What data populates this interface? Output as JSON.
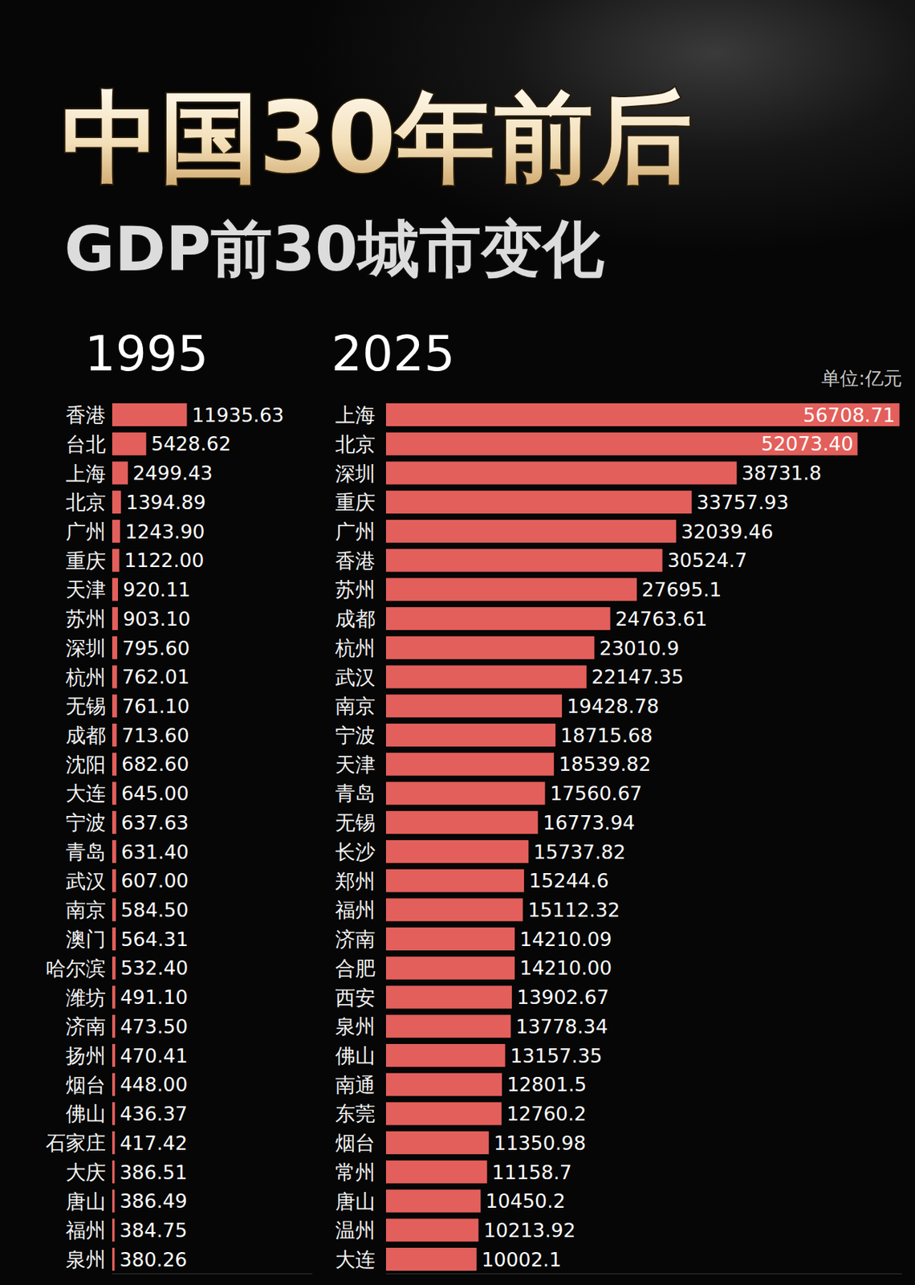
{
  "header": {
    "title": "中国30年前后",
    "subtitle": "GDP前30城市变化",
    "unit": "单位:亿元"
  },
  "chart_data": [
    {
      "type": "bar",
      "title": "1995",
      "orientation": "horizontal",
      "data_labels": true,
      "tick_labels": false,
      "color": "#e35f5b",
      "categories": [
        "香港",
        "台北",
        "上海",
        "北京",
        "广州",
        "重庆",
        "天津",
        "苏州",
        "深圳",
        "杭州",
        "无锡",
        "成都",
        "沈阳",
        "大连",
        "宁波",
        "青岛",
        "武汉",
        "南京",
        "澳门",
        "哈尔滨",
        "潍坊",
        "济南",
        "扬州",
        "烟台",
        "佛山",
        "石家庄",
        "大庆",
        "唐山",
        "福州",
        "泉州"
      ],
      "values": [
        11935.63,
        5428.62,
        2499.43,
        1394.89,
        1243.9,
        1122.0,
        920.11,
        903.1,
        795.6,
        762.01,
        761.1,
        713.6,
        682.6,
        645.0,
        637.63,
        631.4,
        607.0,
        584.5,
        564.31,
        532.4,
        491.1,
        473.5,
        470.41,
        448.0,
        436.37,
        417.42,
        386.51,
        386.49,
        384.75,
        380.26
      ],
      "value_labels": [
        "11935.63",
        "5428.62",
        "2499.43",
        "1394.89",
        "1243.90",
        "1122.00",
        "920.11",
        "903.10",
        "795.60",
        "762.01",
        "761.10",
        "713.60",
        "682.60",
        "645.00",
        "637.63",
        "631.40",
        "607.00",
        "584.50",
        "564.31",
        "532.40",
        "491.10",
        "473.50",
        "470.41",
        "448.00",
        "436.37",
        "417.42",
        "386.51",
        "386.49",
        "384.75",
        "380.26"
      ],
      "xlim": [
        0,
        32000
      ]
    },
    {
      "type": "bar",
      "title": "2025",
      "orientation": "horizontal",
      "data_labels": true,
      "tick_labels": false,
      "color": "#e35f5b",
      "categories": [
        "上海",
        "北京",
        "深圳",
        "重庆",
        "广州",
        "香港",
        "苏州",
        "成都",
        "杭州",
        "武汉",
        "南京",
        "宁波",
        "天津",
        "青岛",
        "无锡",
        "长沙",
        "郑州",
        "福州",
        "济南",
        "合肥",
        "西安",
        "泉州",
        "佛山",
        "南通",
        "东莞",
        "烟台",
        "常州",
        "唐山",
        "温州",
        "大连"
      ],
      "values": [
        56708.71,
        52073.4,
        38731.8,
        33757.93,
        32039.46,
        30524.7,
        27695.1,
        24763.61,
        23010.9,
        22147.35,
        19428.78,
        18715.68,
        18539.82,
        17560.67,
        16773.94,
        15737.82,
        15244.6,
        15112.32,
        14210.09,
        14210.0,
        13902.67,
        13778.34,
        13157.35,
        12801.5,
        12760.2,
        11350.98,
        11158.7,
        10450.2,
        10213.92,
        10002.1
      ],
      "value_labels": [
        "56708.71",
        "52073.40",
        "38731.8",
        "33757.93",
        "32039.46",
        "30524.7",
        "27695.1",
        "24763.61",
        "23010.9",
        "22147.35",
        "19428.78",
        "18715.68",
        "18539.82",
        "17560.67",
        "16773.94",
        "15737.82",
        "15244.6",
        "15112.32",
        "14210.09",
        "14210.00",
        "13902.67",
        "13778.34",
        "13157.35",
        "12801.5",
        "12760.2",
        "11350.98",
        "11158.7",
        "10450.2",
        "10213.92",
        "10002.1"
      ],
      "xlim": [
        0,
        57000
      ]
    }
  ]
}
